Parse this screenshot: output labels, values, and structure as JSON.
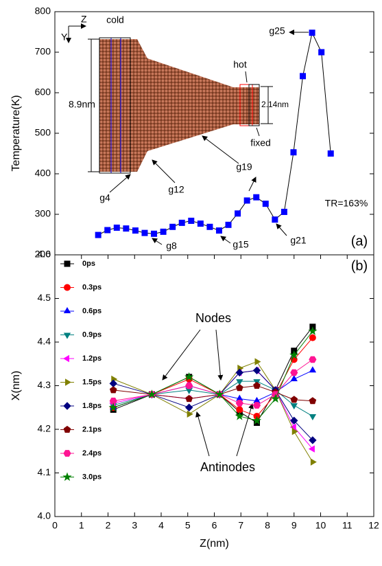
{
  "chart_data": [
    {
      "type": "line",
      "ylabel": "Temperature(K)",
      "x": [
        1.63,
        1.98,
        2.33,
        2.68,
        3.03,
        3.38,
        3.73,
        4.08,
        4.43,
        4.78,
        5.13,
        5.48,
        5.83,
        6.18,
        6.53,
        6.88,
        7.23,
        7.58,
        7.93,
        8.28,
        8.63,
        8.98,
        9.33,
        9.68,
        10.03,
        10.38
      ],
      "values": [
        249,
        261,
        267,
        265,
        260,
        254,
        252,
        257,
        269,
        279,
        284,
        277,
        269,
        260,
        274,
        302,
        334,
        342,
        326,
        287,
        306,
        453,
        641,
        748,
        700,
        450
      ],
      "color": "#0000ff",
      "line_color": "#000000",
      "marker": "square",
      "xlim": [
        0,
        12
      ],
      "ylim": [
        200,
        800
      ],
      "yticks": [
        200,
        300,
        400,
        500,
        600,
        700,
        800
      ]
    },
    {
      "type": "line",
      "xlabel": "Z(nm)",
      "ylabel": "X(nm)",
      "x": [
        2.2,
        3.65,
        5.05,
        6.2,
        6.95,
        7.6,
        8.3,
        9.0,
        9.7
      ],
      "series": [
        {
          "name": "0ps",
          "color": "#000000",
          "marker": "square",
          "values": [
            4.245,
            4.28,
            4.32,
            4.28,
            4.24,
            4.215,
            4.29,
            4.38,
            4.435
          ]
        },
        {
          "name": "0.3ps",
          "color": "#ff0000",
          "marker": "circle",
          "values": [
            4.25,
            4.28,
            4.315,
            4.28,
            4.245,
            4.23,
            4.28,
            4.36,
            4.41
          ]
        },
        {
          "name": "0.6ps",
          "color": "#0000ff",
          "marker": "triangle-up",
          "values": [
            4.25,
            4.28,
            4.3,
            4.28,
            4.27,
            4.265,
            4.285,
            4.315,
            4.335
          ]
        },
        {
          "name": "0.9ps",
          "color": "#008080",
          "marker": "triangle-down",
          "values": [
            4.255,
            4.28,
            4.29,
            4.28,
            4.31,
            4.31,
            4.29,
            4.255,
            4.23
          ]
        },
        {
          "name": "1.2ps",
          "color": "#ff00ff",
          "marker": "triangle-left",
          "values": [
            4.26,
            4.28,
            4.27,
            4.28,
            4.33,
            4.335,
            4.29,
            4.205,
            4.155
          ]
        },
        {
          "name": "1.5ps",
          "color": "#808000",
          "marker": "triangle-right",
          "values": [
            4.315,
            4.28,
            4.235,
            4.28,
            4.34,
            4.355,
            4.29,
            4.195,
            4.125
          ]
        },
        {
          "name": "1.8ps",
          "color": "#000080",
          "marker": "diamond",
          "values": [
            4.305,
            4.28,
            4.25,
            4.28,
            4.33,
            4.335,
            4.29,
            4.22,
            4.175
          ]
        },
        {
          "name": "2.1ps",
          "color": "#800000",
          "marker": "pentagon",
          "values": [
            4.29,
            4.28,
            4.27,
            4.28,
            4.295,
            4.3,
            4.285,
            4.268,
            4.265
          ]
        },
        {
          "name": "2.4ps",
          "color": "#ff1493",
          "marker": "hexagon",
          "values": [
            4.265,
            4.28,
            4.3,
            4.28,
            4.26,
            4.255,
            4.28,
            4.33,
            4.36
          ]
        },
        {
          "name": "3.0ps",
          "color": "#008000",
          "marker": "star",
          "values": [
            4.25,
            4.28,
            4.32,
            4.28,
            4.23,
            4.22,
            4.27,
            4.37,
            4.425
          ]
        }
      ],
      "xlim": [
        0,
        12
      ],
      "ylim": [
        4.0,
        4.6
      ],
      "xticks": [
        0,
        1,
        2,
        3,
        4,
        5,
        6,
        7,
        8,
        9,
        10,
        11,
        12
      ],
      "yticks": [
        {
          "value": 4.0,
          "label": "4.0"
        },
        4.1,
        4.2,
        4.3,
        4.4,
        4.5,
        4.6
      ]
    }
  ],
  "annotations": {
    "z": "Z",
    "y": "Y",
    "cold": "cold",
    "hot": "hot",
    "width": "8.9nm",
    "narrow": "2.14nm",
    "fixed": "fixed",
    "g4": "g4",
    "g8": "g8",
    "g12": "g12",
    "g15": "g15",
    "g19": "g19",
    "g21": "g21",
    "g25": "g25",
    "tr": "TR=163%",
    "panel_a": "(a)",
    "panel_b": "(b)",
    "nodes": "Nodes",
    "antinodes": "Antinodes"
  }
}
